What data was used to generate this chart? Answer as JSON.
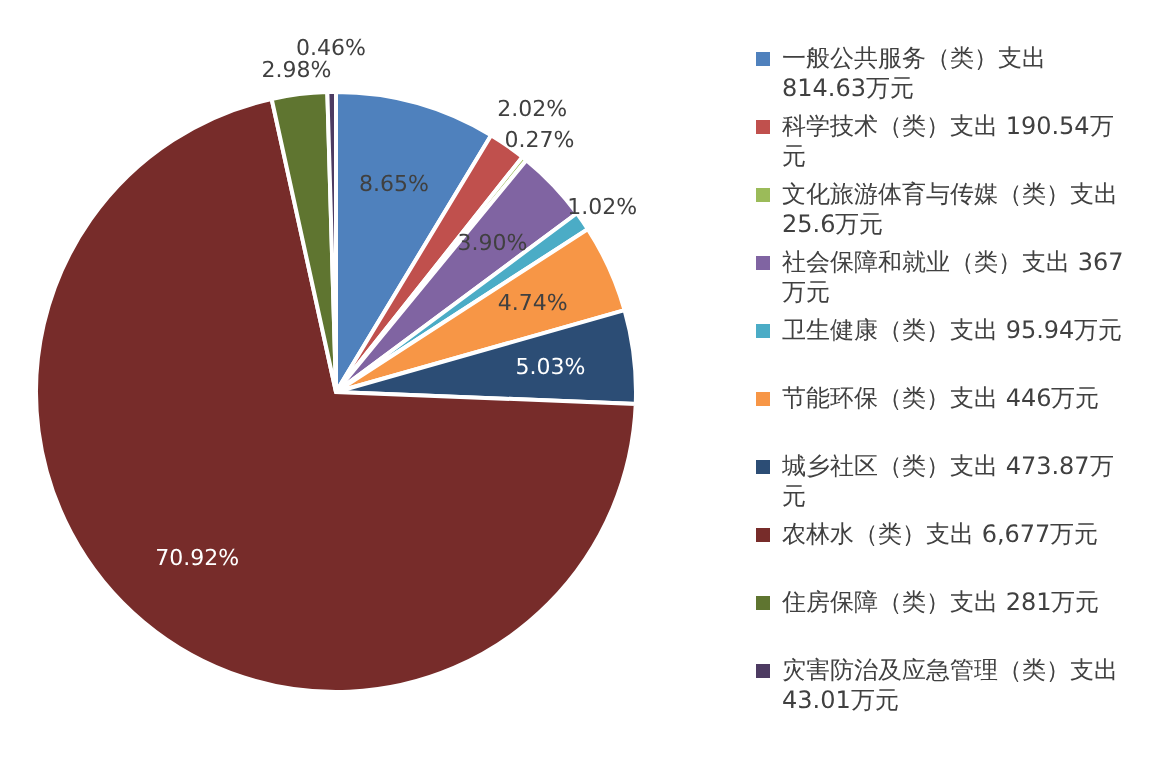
{
  "chart_data": {
    "type": "pie",
    "categories": [
      "一般公共服务（类）支出 814.63万元",
      "科学技术（类）支出 190.54万元",
      "文化旅游体育与传媒（类）支出 25.6万元",
      "社会保障和就业（类）支出 367万元",
      "卫生健康（类）支出 95.94万元",
      "节能环保（类）支出 446万元",
      "城乡社区（类）支出 473.87万元",
      "农林水（类）支出 6,677万元",
      "住房保障（类）支出 281万元",
      "灾害防治及应急管理（类）支出 43.01万元"
    ],
    "values": [
      8.65,
      2.02,
      0.27,
      3.9,
      1.02,
      4.74,
      5.03,
      70.92,
      2.98,
      0.46
    ],
    "value_labels": [
      "8.65%",
      "2.02%",
      "0.27%",
      "3.90%",
      "1.02%",
      "4.74%",
      "5.03%",
      "70.92%",
      "2.98%",
      "0.46%"
    ],
    "colors": [
      "#4f81bd",
      "#c0504d",
      "#9bbb59",
      "#8064a2",
      "#4bacc6",
      "#f79646",
      "#2c4d75",
      "#772c2a",
      "#5f7530",
      "#4d3b62"
    ],
    "legend": "right"
  }
}
